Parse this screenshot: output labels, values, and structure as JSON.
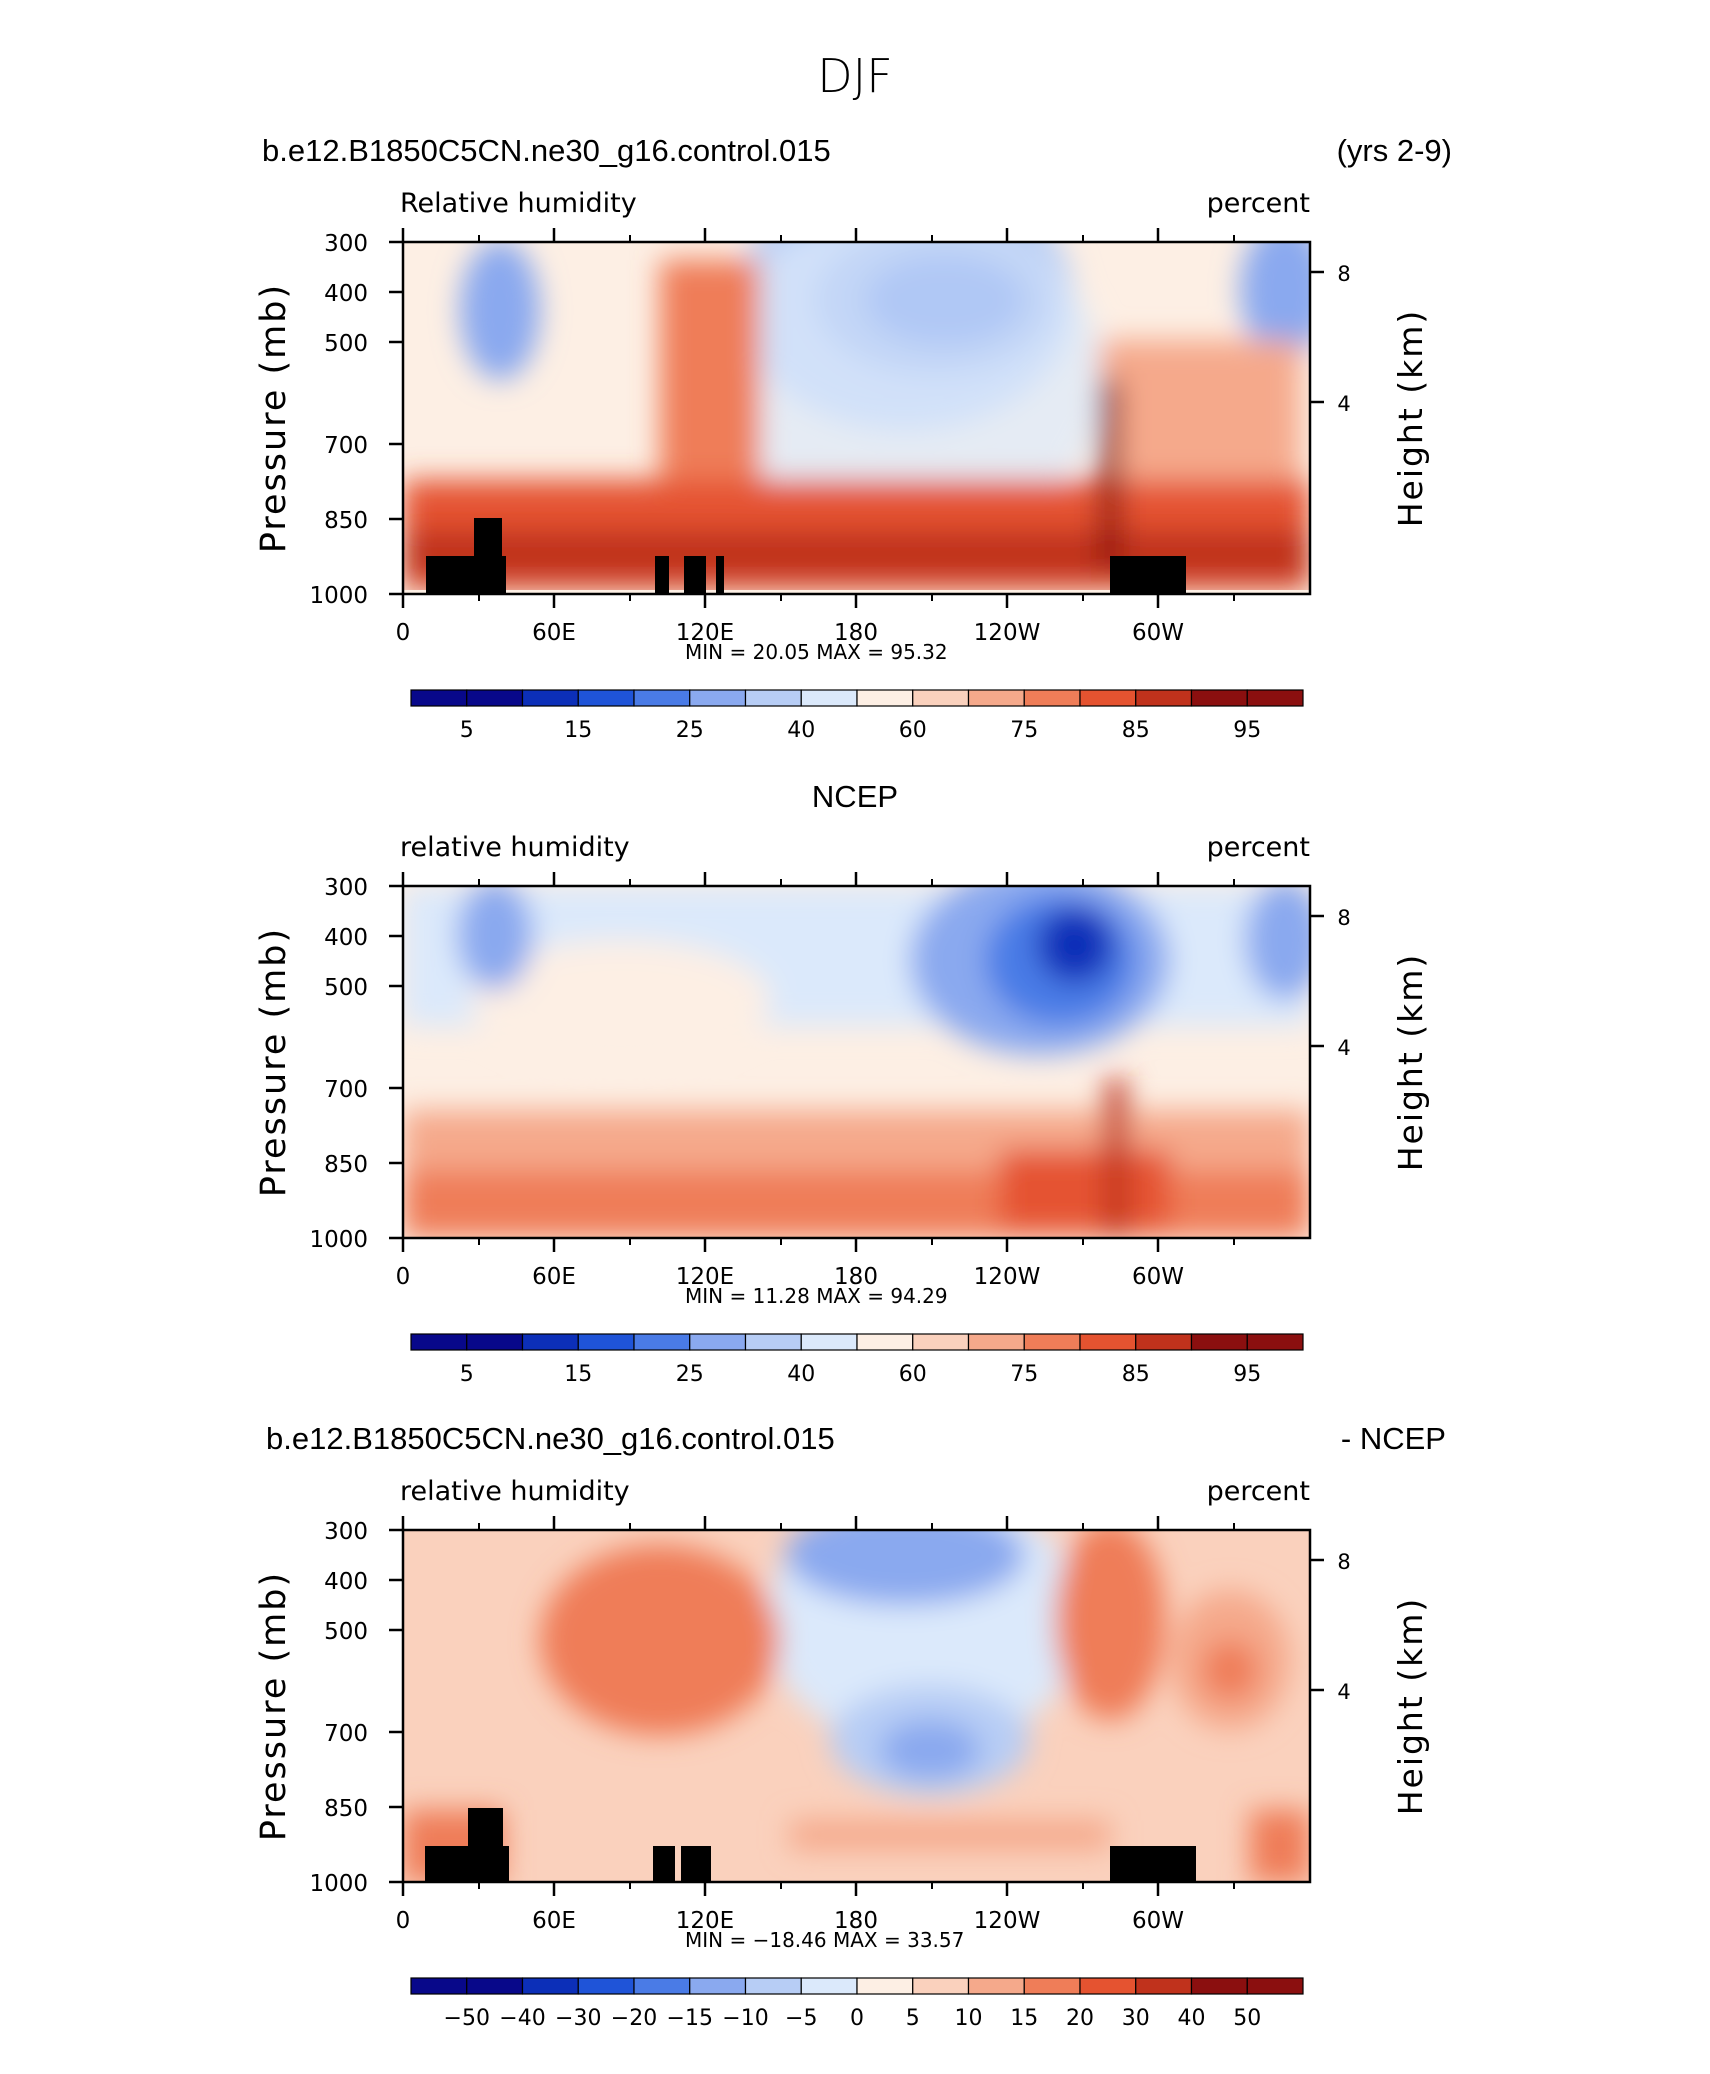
{
  "figure": {
    "title": "DJF"
  },
  "colors": {
    "blue_to_red": [
      "#08088a",
      "#0c2fb8",
      "#1f54d8",
      "#4a7be6",
      "#8aa9ef",
      "#b7cdf5",
      "#dbe9fb",
      "#fdefe4",
      "#fad1bd",
      "#f5a98b",
      "#ef7d58",
      "#e55330",
      "#c0321c",
      "#8b0f0f"
    ],
    "land": "#000000"
  },
  "chart_data": [
    {
      "type": "heatmap",
      "panel": "model",
      "left_title": "b.e12.B1850C5CN.ne30_g16.control.015",
      "right_title": "(yrs 2-9)",
      "variable": "Relative humidity",
      "units": "percent",
      "ylabel": "Pressure (mb)",
      "ylabel_right": "Height (km)",
      "xticks": [
        "0",
        "60E",
        "120E",
        "180",
        "120W",
        "60W"
      ],
      "yticks": [
        "300",
        "400",
        "500",
        "700",
        "850",
        "1000"
      ],
      "height_ticks": [
        "8",
        "4"
      ],
      "stats": {
        "min_label": "MIN =",
        "min": "20.05",
        "max_label": "MAX =",
        "max": "95.32"
      },
      "colorbar_labels": [
        "5",
        "15",
        "25",
        "40",
        "60",
        "75",
        "85",
        "95"
      ],
      "ylim": [
        1000,
        300
      ]
    },
    {
      "type": "heatmap",
      "panel": "obs",
      "center_title": "NCEP",
      "variable": "relative humidity",
      "units": "percent",
      "ylabel": "Pressure (mb)",
      "ylabel_right": "Height (km)",
      "xticks": [
        "0",
        "60E",
        "120E",
        "180",
        "120W",
        "60W"
      ],
      "yticks": [
        "300",
        "400",
        "500",
        "700",
        "850",
        "1000"
      ],
      "height_ticks": [
        "8",
        "4"
      ],
      "stats": {
        "min_label": "MIN =",
        "min": "11.28",
        "max_label": "MAX =",
        "max": "94.29"
      },
      "colorbar_labels": [
        "5",
        "15",
        "25",
        "40",
        "60",
        "75",
        "85",
        "95"
      ],
      "ylim": [
        1000,
        300
      ]
    },
    {
      "type": "heatmap",
      "panel": "difference",
      "left_title": "b.e12.B1850C5CN.ne30_g16.control.015",
      "right_title": "- NCEP",
      "variable": "relative humidity",
      "units": "percent",
      "ylabel": "Pressure (mb)",
      "ylabel_right": "Height (km)",
      "xticks": [
        "0",
        "60E",
        "120E",
        "180",
        "120W",
        "60W"
      ],
      "yticks": [
        "300",
        "400",
        "500",
        "700",
        "850",
        "1000"
      ],
      "height_ticks": [
        "8",
        "4"
      ],
      "stats": {
        "min_label": "MIN =",
        "min": "−18.46",
        "max_label": "MAX =",
        "max": "33.57"
      },
      "colorbar_labels": [
        "−50",
        "−40",
        "−30",
        "−20",
        "−15",
        "−10",
        "−5",
        "0",
        "5",
        "10",
        "15",
        "20",
        "30",
        "40",
        "50"
      ],
      "ylim": [
        1000,
        300
      ]
    }
  ]
}
